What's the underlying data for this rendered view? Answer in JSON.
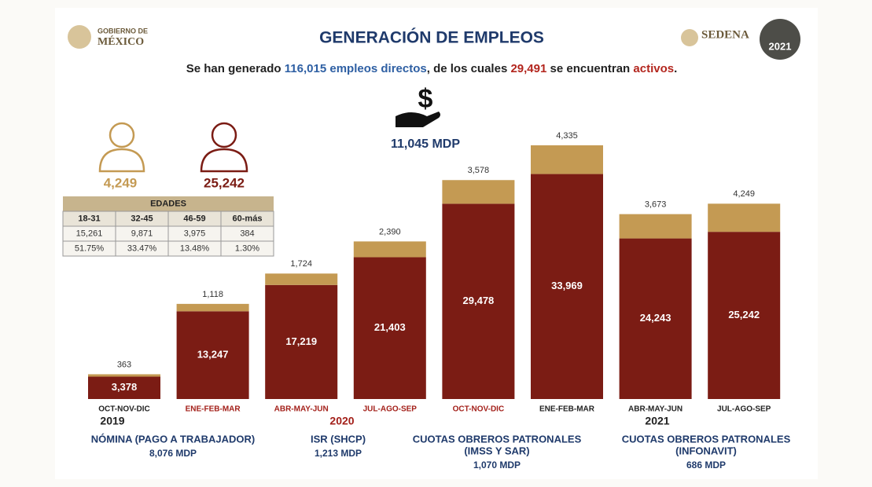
{
  "header": {
    "logo_left": [
      "GOBIERNO DE",
      "MÉXICO"
    ],
    "title": "GENERACIÓN DE EMPLEOS",
    "logo_right": "SEDENA",
    "badge": "2021"
  },
  "summary": [
    "Se han generado ",
    "116,015",
    " empleos directos",
    ", de los cuales ",
    "29,491",
    " se encuentran ",
    "activos",
    "."
  ],
  "women": "4,249",
  "men": "25,242",
  "investment": "11,045 MDP",
  "ages": {
    "title": "EDADES",
    "columns": [
      "18-31",
      "32-45",
      "46-59",
      "60-más"
    ],
    "rows": [
      [
        "15,261",
        "9,871",
        "3,975",
        "384"
      ],
      [
        "51.75%",
        "33.47%",
        "13.48%",
        "1.30%"
      ]
    ]
  },
  "chart_data": {
    "type": "bar",
    "stacked": true,
    "categories": [
      "OCT-NOV-DIC",
      "ENE-FEB-MAR",
      "ABR-MAY-JUN",
      "JUL-AGO-SEP",
      "OCT-NOV-DIC",
      "ENE-FEB-MAR",
      "ABR-MAY-JUN",
      "JUL-AGO-SEP"
    ],
    "category_label_colors": [
      "#222222",
      "#a3201a",
      "#a3201a",
      "#a3201a",
      "#a3201a",
      "#222222",
      "#222222",
      "#222222"
    ],
    "year_labels": [
      "2019",
      "2020",
      "2021"
    ],
    "year_label_colors": [
      "#222222",
      "#a3201a",
      "#222222"
    ],
    "series": [
      {
        "color": "#7b1c14",
        "values": [
          3378,
          13247,
          17219,
          21403,
          29478,
          33969,
          24243,
          25242
        ],
        "value_labels": [
          "3,378",
          "13,247",
          "17,219",
          "21,403",
          "29,478",
          "33,969",
          "24,243",
          "25,242"
        ]
      },
      {
        "color": "#c49a53",
        "values": [
          363,
          1118,
          1724,
          2390,
          3578,
          4335,
          3673,
          4249
        ],
        "value_labels": [
          "363",
          "1,118",
          "1,724",
          "2,390",
          "3,578",
          "4,335",
          "3,673",
          "4,249"
        ]
      }
    ]
  },
  "costs": [
    {
      "label": [
        "NÓMINA (PAGO A TRABAJADOR)"
      ],
      "amount": "8,076 MDP"
    },
    {
      "label": [
        "ISR (SHCP)"
      ],
      "amount": "1,213 MDP"
    },
    {
      "label": [
        "CUOTAS OBREROS PATRONALES",
        "(IMSS Y SAR)"
      ],
      "amount": "1,070 MDP"
    },
    {
      "label": [
        "CUOTAS OBREROS PATRONALES",
        "(INFONAVIT)"
      ],
      "amount": "686 MDP"
    }
  ]
}
